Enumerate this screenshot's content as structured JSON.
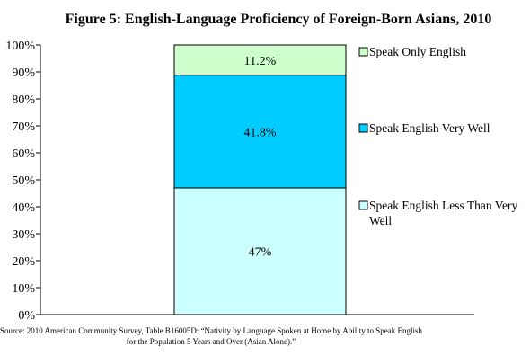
{
  "chart_data": {
    "type": "bar",
    "stacked": true,
    "title": "Figure 5: English-Language Proficiency of Foreign-Born Asians, 2010",
    "categories": [
      ""
    ],
    "series": [
      {
        "name": "Speak English Less Than Very Well",
        "values": [
          47
        ],
        "label": "47%",
        "color": "#ccffff"
      },
      {
        "name": "Speak English Very Well",
        "values": [
          41.8
        ],
        "label": "41.8%",
        "color": "#00ccff"
      },
      {
        "name": "Speak Only English",
        "values": [
          11.2
        ],
        "label": "11.2%",
        "color": "#ccffcc"
      }
    ],
    "ylim": [
      0,
      100
    ],
    "yticks": [
      "0%",
      "10%",
      "20%",
      "30%",
      "40%",
      "50%",
      "60%",
      "70%",
      "80%",
      "90%",
      "100%"
    ],
    "grid": false,
    "legend_position": "right",
    "legend": [
      {
        "label": "Speak Only English",
        "color": "#ccffcc"
      },
      {
        "label": "Speak English Very Well",
        "color": "#00ccff"
      },
      {
        "label": "Speak English Less Than Very Well",
        "color": "#ccffff"
      }
    ]
  },
  "source_lines": [
    "Source: 2010 American Community Survey, Table B16005D: “Nativity by Language Spoken at Home by Ability to Speak English",
    "for the Population 5 Years and Over (Asian Alone).”"
  ]
}
